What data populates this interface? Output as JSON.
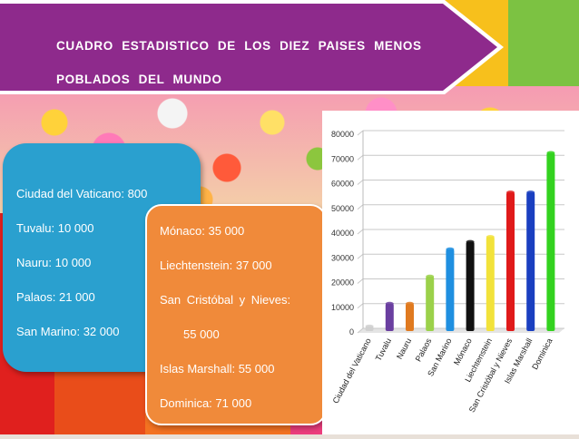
{
  "slide": {
    "title_line1": "CUADRO ESTADISTICO DE LOS DIEZ PAISES MENOS",
    "title_line2": "POBLADOS DEL MUNDO"
  },
  "list_left": [
    "Ciudad del Vaticano: 800",
    "Tuvalu: 10 000",
    "Nauru: 10 000",
    "Palaos: 21 000",
    "San Marino: 32 000"
  ],
  "list_right": [
    "Mónaco: 35 000",
    "Liechtenstein: 37 000",
    "San Cristóbal y Nieves:",
    "55 000",
    "Islas Marshall: 55 000",
    "Dominica: 71 000"
  ],
  "colors": {
    "banner": "#8e2a8c",
    "box_blue": "#2aa0cf",
    "box_orange": "#f08a3a"
  },
  "chart_data": {
    "type": "bar",
    "categories": [
      "Ciudad del Vaticano",
      "Tuvalu",
      "Nauru",
      "Palaos",
      "San Marino",
      "Mónaco",
      "Liechtenstein",
      "San Cristóbal y Nieves",
      "Islas Marshall",
      "Dominica"
    ],
    "values": [
      800,
      10000,
      10000,
      21000,
      32000,
      35000,
      37000,
      55000,
      55000,
      71000
    ],
    "bar_colors": [
      "#d0d0d0",
      "#6a3fa0",
      "#e07a20",
      "#9bd14a",
      "#1f8fe0",
      "#111111",
      "#f2e23a",
      "#e01a1a",
      "#1a3fc0",
      "#33d21f"
    ],
    "ylim": [
      0,
      80000
    ],
    "yticks": [
      0,
      10000,
      20000,
      30000,
      40000,
      50000,
      60000,
      70000,
      80000
    ],
    "grid": true,
    "title": "",
    "xlabel": "",
    "ylabel": ""
  }
}
